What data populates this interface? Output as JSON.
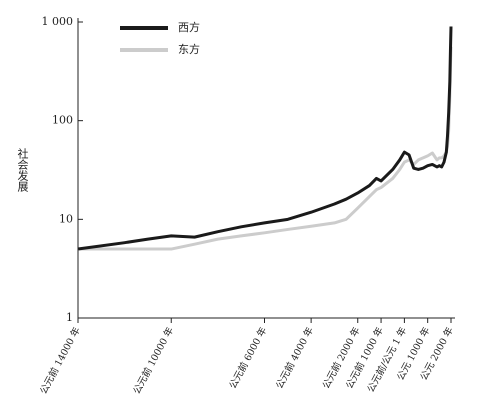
{
  "chart_data": {
    "type": "line",
    "y_label": "社会发展",
    "log_y": true,
    "x": [
      -14000,
      -12000,
      -11000,
      -10000,
      -9000,
      -8000,
      -7000,
      -6000,
      -5000,
      -4000,
      -3000,
      -2500,
      -2000,
      -1500,
      -1200,
      -1000,
      -500,
      -200,
      1,
      200,
      400,
      600,
      800,
      1000,
      1200,
      1400,
      1500,
      1600,
      1700,
      1800,
      1850,
      1900,
      1950,
      1975,
      2000
    ],
    "series": [
      {
        "name": "西方",
        "color": "#1a1a1a",
        "values": [
          5,
          5.8,
          6.3,
          6.8,
          6.6,
          7.5,
          8.4,
          9.2,
          10,
          11.8,
          14.3,
          16,
          18.5,
          22,
          26,
          24.5,
          32,
          40,
          48,
          45,
          33,
          32,
          33,
          35,
          36,
          34,
          35,
          34,
          38,
          48,
          70,
          120,
          250,
          500,
          900
        ]
      },
      {
        "name": "东方",
        "color": "#cccccc",
        "values": [
          5,
          5,
          5,
          5,
          5.6,
          6.3,
          6.8,
          7.3,
          7.9,
          8.5,
          9.2,
          10,
          13,
          17,
          20,
          21,
          26,
          32,
          38,
          40,
          36,
          40,
          42,
          44,
          47,
          40,
          42,
          42,
          44,
          48,
          55,
          80,
          180,
          350,
          560
        ]
      }
    ],
    "xlim": [
      -14000,
      2000
    ],
    "xticks": [
      {
        "value": -14000,
        "label": "公元前 14000 年"
      },
      {
        "value": -10000,
        "label": "公元前 10000 年"
      },
      {
        "value": -6000,
        "label": "公元前 6000 年"
      },
      {
        "value": -4000,
        "label": "公元前 4000 年"
      },
      {
        "value": -2000,
        "label": "公元前 2000 年"
      },
      {
        "value": -1000,
        "label": "公元前 1000 年"
      },
      {
        "value": 1,
        "label": "公元前/公元 1 年"
      },
      {
        "value": 1000,
        "label": "公元 1000 年"
      },
      {
        "value": 2000,
        "label": "公元 2000 年"
      }
    ],
    "ylim": [
      1,
      1000
    ],
    "yticks": [
      1,
      10,
      100,
      {
        "value": 1000,
        "label": "1 000"
      }
    ],
    "legend": "top-left"
  }
}
